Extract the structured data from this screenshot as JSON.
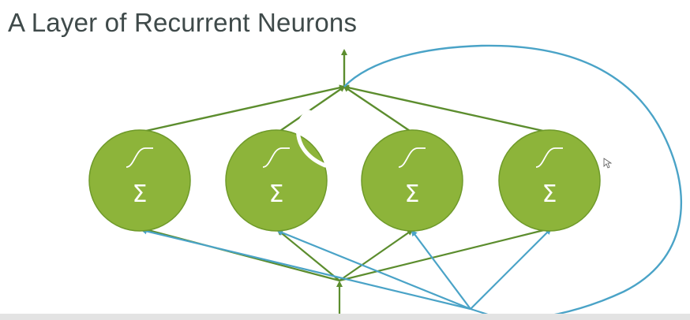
{
  "slide": {
    "title": "A Layer of Recurrent Neurons"
  },
  "neurons": [
    {
      "id": "neuron-1",
      "symbol": "Σ",
      "activation": "sigmoid-step"
    },
    {
      "id": "neuron-2",
      "symbol": "Σ",
      "activation": "sigmoid-step"
    },
    {
      "id": "neuron-3",
      "symbol": "Σ",
      "activation": "sigmoid-step"
    },
    {
      "id": "neuron-4",
      "symbol": "Σ",
      "activation": "sigmoid-step"
    }
  ],
  "colors": {
    "neuron_fill": "#8db43a",
    "neuron_stroke": "#6f9a2a",
    "forward_edge": "#5c8d2e",
    "recurrent_edge": "#4aa3c7",
    "title_text": "#3f4a4a"
  },
  "icons": {
    "mouse_cursor": "cursor-arrow-icon",
    "activation": "sigmoid-curve-icon"
  }
}
